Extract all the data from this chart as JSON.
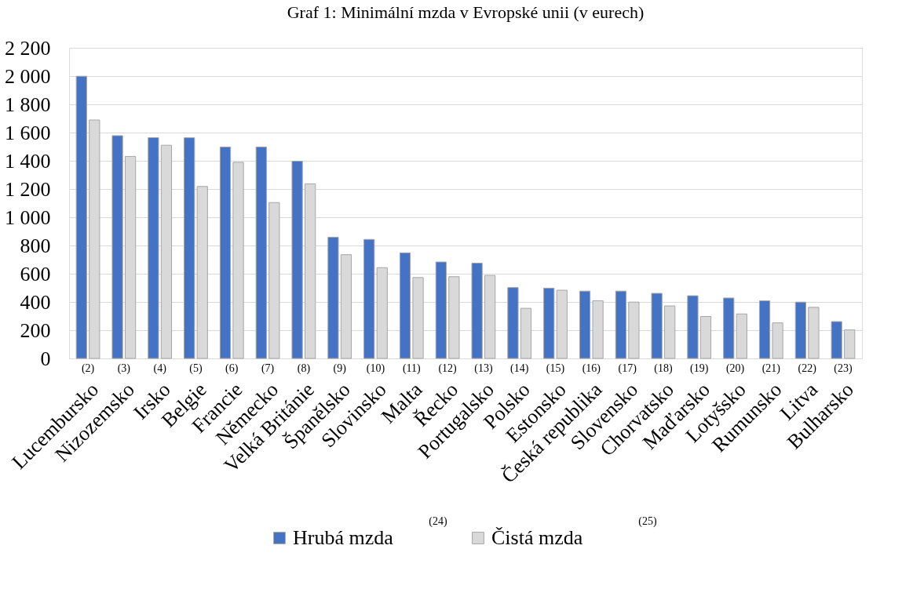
{
  "chart_data": {
    "type": "bar",
    "title": "Graf 1: Minimální mzda v Evropské unii (v eurech)",
    "categories": [
      "Lucembursko",
      "Nizozemsko",
      "Irsko",
      "Belgie",
      "Francie",
      "Německo",
      "Velká Británie",
      "Španělsko",
      "Slovinsko",
      "Malta",
      "Řecko",
      "Portugalsko",
      "Polsko",
      "Estonsko",
      "Česká republika",
      "Slovensko",
      "Chorvatsko",
      "Maďarsko",
      "Lotyšsko",
      "Rumunsko",
      "Litva",
      "Bulharsko"
    ],
    "series": [
      {
        "name": "Hrubá mzda",
        "color": "#4472c4",
        "values": [
          1999,
          1578,
          1564,
          1563,
          1498,
          1498,
          1397,
          859,
          843,
          748,
          683,
          675,
          502,
          498,
          477,
          477,
          461,
          444,
          428,
          408,
          399,
          261
        ]
      },
      {
        "name": "Čistá mzda",
        "color": "#d9d9d9",
        "values": [
          1689,
          1431,
          1510,
          1218,
          1389,
          1104,
          1237,
          735,
          643,
          573,
          579,
          588,
          355,
          483,
          409,
          399,
          372,
          297,
          315,
          252,
          362,
          202
        ]
      }
    ],
    "ylim": [
      0,
      2200
    ],
    "yticks": [
      0,
      200,
      400,
      600,
      800,
      {
        "value": 1000,
        "label": "1 000"
      },
      {
        "value": 1200,
        "label": "1 200"
      },
      {
        "value": 1400,
        "label": "1 400"
      },
      {
        "value": 1600,
        "label": "1 600"
      },
      {
        "value": 1800,
        "label": "1 800"
      },
      {
        "value": 2000,
        "label": "2 000"
      },
      {
        "value": 2200,
        "label": "2 200"
      }
    ],
    "grid": "y",
    "legend": "bottom",
    "annotations": [
      "(2)",
      "(3)",
      "(4)",
      "(5)",
      "(6)",
      "(7)",
      "(8)",
      "(9)",
      "(10)",
      "(11)",
      "(12)",
      "(13)",
      "(14)",
      "(15)",
      "(16)",
      "(17)",
      "(18)",
      "(19)",
      "(20)",
      "(21)",
      "(22)",
      "(23)",
      "(24)",
      "(25)"
    ]
  }
}
